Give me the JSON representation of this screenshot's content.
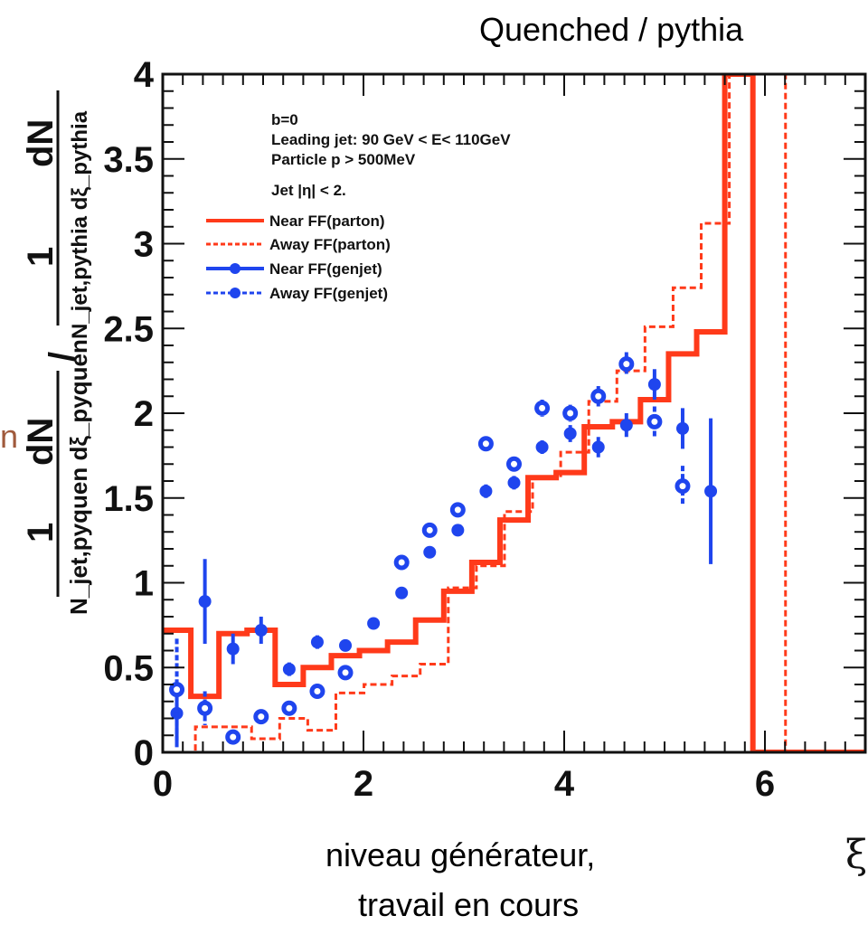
{
  "header_title": "Quenched  / pythia",
  "caption_line1": "niveau générateur,",
  "caption_line2": "travail en cours",
  "side_fragment": "n",
  "colors": {
    "red": "#ff3a1a",
    "blue": "#1f45ee",
    "axis": "#111111",
    "side": "#a05a3c"
  },
  "chart_data": {
    "type": "step-histogram-with-points",
    "xlabel": "ξ",
    "ylabel": {
      "numerator_left": "dN",
      "denominator_left": "N_jet,pyquen dξ_pyquen",
      "slash": "/",
      "numerator_right": "dN",
      "denominator_right": "N_jet,pythia dξ_pythia",
      "one": "1"
    },
    "xlim": [
      0,
      7
    ],
    "ylim": [
      0,
      4
    ],
    "x_ticks": [
      "0",
      "2",
      "4",
      "6"
    ],
    "x_tick_values": [
      0,
      2,
      4,
      6
    ],
    "y_ticks": [
      "0",
      "0.5",
      "1",
      "1.5",
      "2",
      "2.5",
      "3",
      "3.5",
      "4"
    ],
    "y_tick_values": [
      0,
      0.5,
      1,
      1.5,
      2,
      2.5,
      3,
      3.5,
      4
    ],
    "annotations": [
      "b=0",
      "Leading jet: 90 GeV <  E< 110GeV",
      "Particle p  > 500MeV",
      "Jet |η| < 2."
    ],
    "bin_edges": [
      0,
      0.28,
      0.56,
      0.84,
      1.12,
      1.4,
      1.68,
      1.96,
      2.24,
      2.52,
      2.8,
      3.08,
      3.36,
      3.64,
      3.92,
      4.2,
      4.48,
      4.76,
      5.04,
      5.32,
      5.6,
      5.88,
      6.16,
      7
    ],
    "series": [
      {
        "name": "Near FF(parton)",
        "style": "solid-line",
        "values": [
          0.72,
          0.33,
          0.7,
          0.72,
          0.4,
          0.5,
          0.57,
          0.6,
          0.65,
          0.78,
          0.95,
          1.12,
          1.37,
          1.62,
          1.65,
          1.92,
          1.95,
          2.08,
          2.35,
          2.48,
          4.0,
          0.0,
          0.0,
          0.0
        ]
      },
      {
        "name": "Away FF(parton)",
        "style": "dashed-line",
        "values": [
          0.0,
          0.15,
          0.15,
          0.08,
          0.2,
          0.13,
          0.35,
          0.4,
          0.45,
          0.52,
          0.97,
          1.1,
          1.42,
          1.62,
          1.77,
          2.07,
          2.25,
          2.51,
          2.74,
          3.12,
          4.0,
          4.0,
          0.0,
          0.0
        ]
      },
      {
        "name": "Near FF(genjet)",
        "style": "filled-points",
        "x": [
          0.14,
          0.42,
          0.7,
          0.98,
          1.26,
          1.54,
          1.82,
          2.1,
          2.38,
          2.66,
          2.94,
          3.22,
          3.5,
          3.78,
          4.06,
          4.34,
          4.62,
          4.9,
          5.18,
          5.46
        ],
        "y": [
          0.23,
          0.89,
          0.61,
          0.72,
          0.49,
          0.65,
          0.63,
          0.76,
          0.94,
          1.18,
          1.31,
          1.54,
          1.59,
          1.8,
          1.88,
          1.8,
          1.93,
          2.17,
          1.91,
          1.54
        ],
        "err": [
          0.2,
          0.25,
          0.09,
          0.08,
          0.04,
          0.04,
          0.03,
          0.03,
          0.03,
          0.03,
          0.03,
          0.04,
          0.04,
          0.04,
          0.05,
          0.06,
          0.07,
          0.09,
          0.12,
          0.43
        ]
      },
      {
        "name": "Away FF(genjet)",
        "style": "open-points",
        "x": [
          0.14,
          0.42,
          0.7,
          0.98,
          1.26,
          1.54,
          1.82,
          2.38,
          2.66,
          2.94,
          3.22,
          3.5,
          3.78,
          4.06,
          4.34,
          4.62,
          4.9,
          5.18
        ],
        "y": [
          0.37,
          0.26,
          0.09,
          0.21,
          0.26,
          0.36,
          0.47,
          1.12,
          1.31,
          1.43,
          1.82,
          1.7,
          2.03,
          2.0,
          2.1,
          2.29,
          1.95,
          1.57
        ],
        "err": [
          0.3,
          0.1,
          0.04,
          0.04,
          0.03,
          0.03,
          0.03,
          0.03,
          0.03,
          0.03,
          0.04,
          0.04,
          0.05,
          0.05,
          0.06,
          0.07,
          0.09,
          0.12
        ]
      }
    ]
  }
}
